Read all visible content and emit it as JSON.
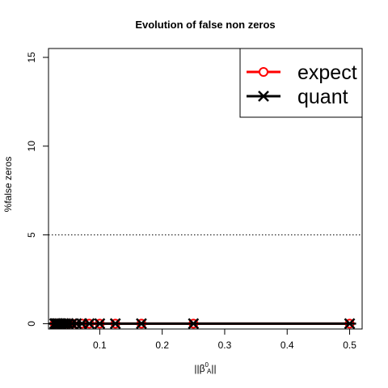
{
  "chart_data": {
    "type": "line",
    "title": "Evolution of false non zeros",
    "xlabel_main": "||β",
    "xlabel_sup": "0",
    "xlabel_sub": "A",
    "xlabel_end": "||",
    "ylabel": "%false zeros",
    "xlim": [
      0.018,
      0.52
    ],
    "ylim": [
      -0.3,
      15.5
    ],
    "x_ticks": [
      0.1,
      0.2,
      0.3,
      0.4,
      0.5
    ],
    "x_tick_labels": [
      "0.1",
      "0.2",
      "0.3",
      "0.4",
      "0.5"
    ],
    "y_ticks": [
      0,
      5,
      10,
      15
    ],
    "y_tick_labels": [
      "0",
      "5",
      "10",
      "15"
    ],
    "hline": 5,
    "x": [
      0.5,
      0.25,
      0.1667,
      0.125,
      0.1,
      0.0833,
      0.0714,
      0.0625,
      0.0556,
      0.05,
      0.0455,
      0.0417,
      0.0385,
      0.0357,
      0.0333,
      0.0313,
      0.0294,
      0.0278
    ],
    "series": [
      {
        "name": "expect",
        "color": "#ff0000",
        "marker": "circle",
        "values": [
          0,
          0,
          0,
          0,
          0,
          0,
          0,
          0,
          0,
          0,
          0,
          0,
          0,
          0,
          0,
          0,
          0,
          0
        ]
      },
      {
        "name": "quant",
        "color": "#000000",
        "marker": "asterisk",
        "values": [
          0,
          0,
          0,
          0,
          0,
          0,
          0,
          0,
          0,
          0,
          0,
          0,
          0,
          0,
          0,
          0,
          0,
          0
        ]
      }
    ],
    "legend_position": "top-right",
    "grid": false
  }
}
